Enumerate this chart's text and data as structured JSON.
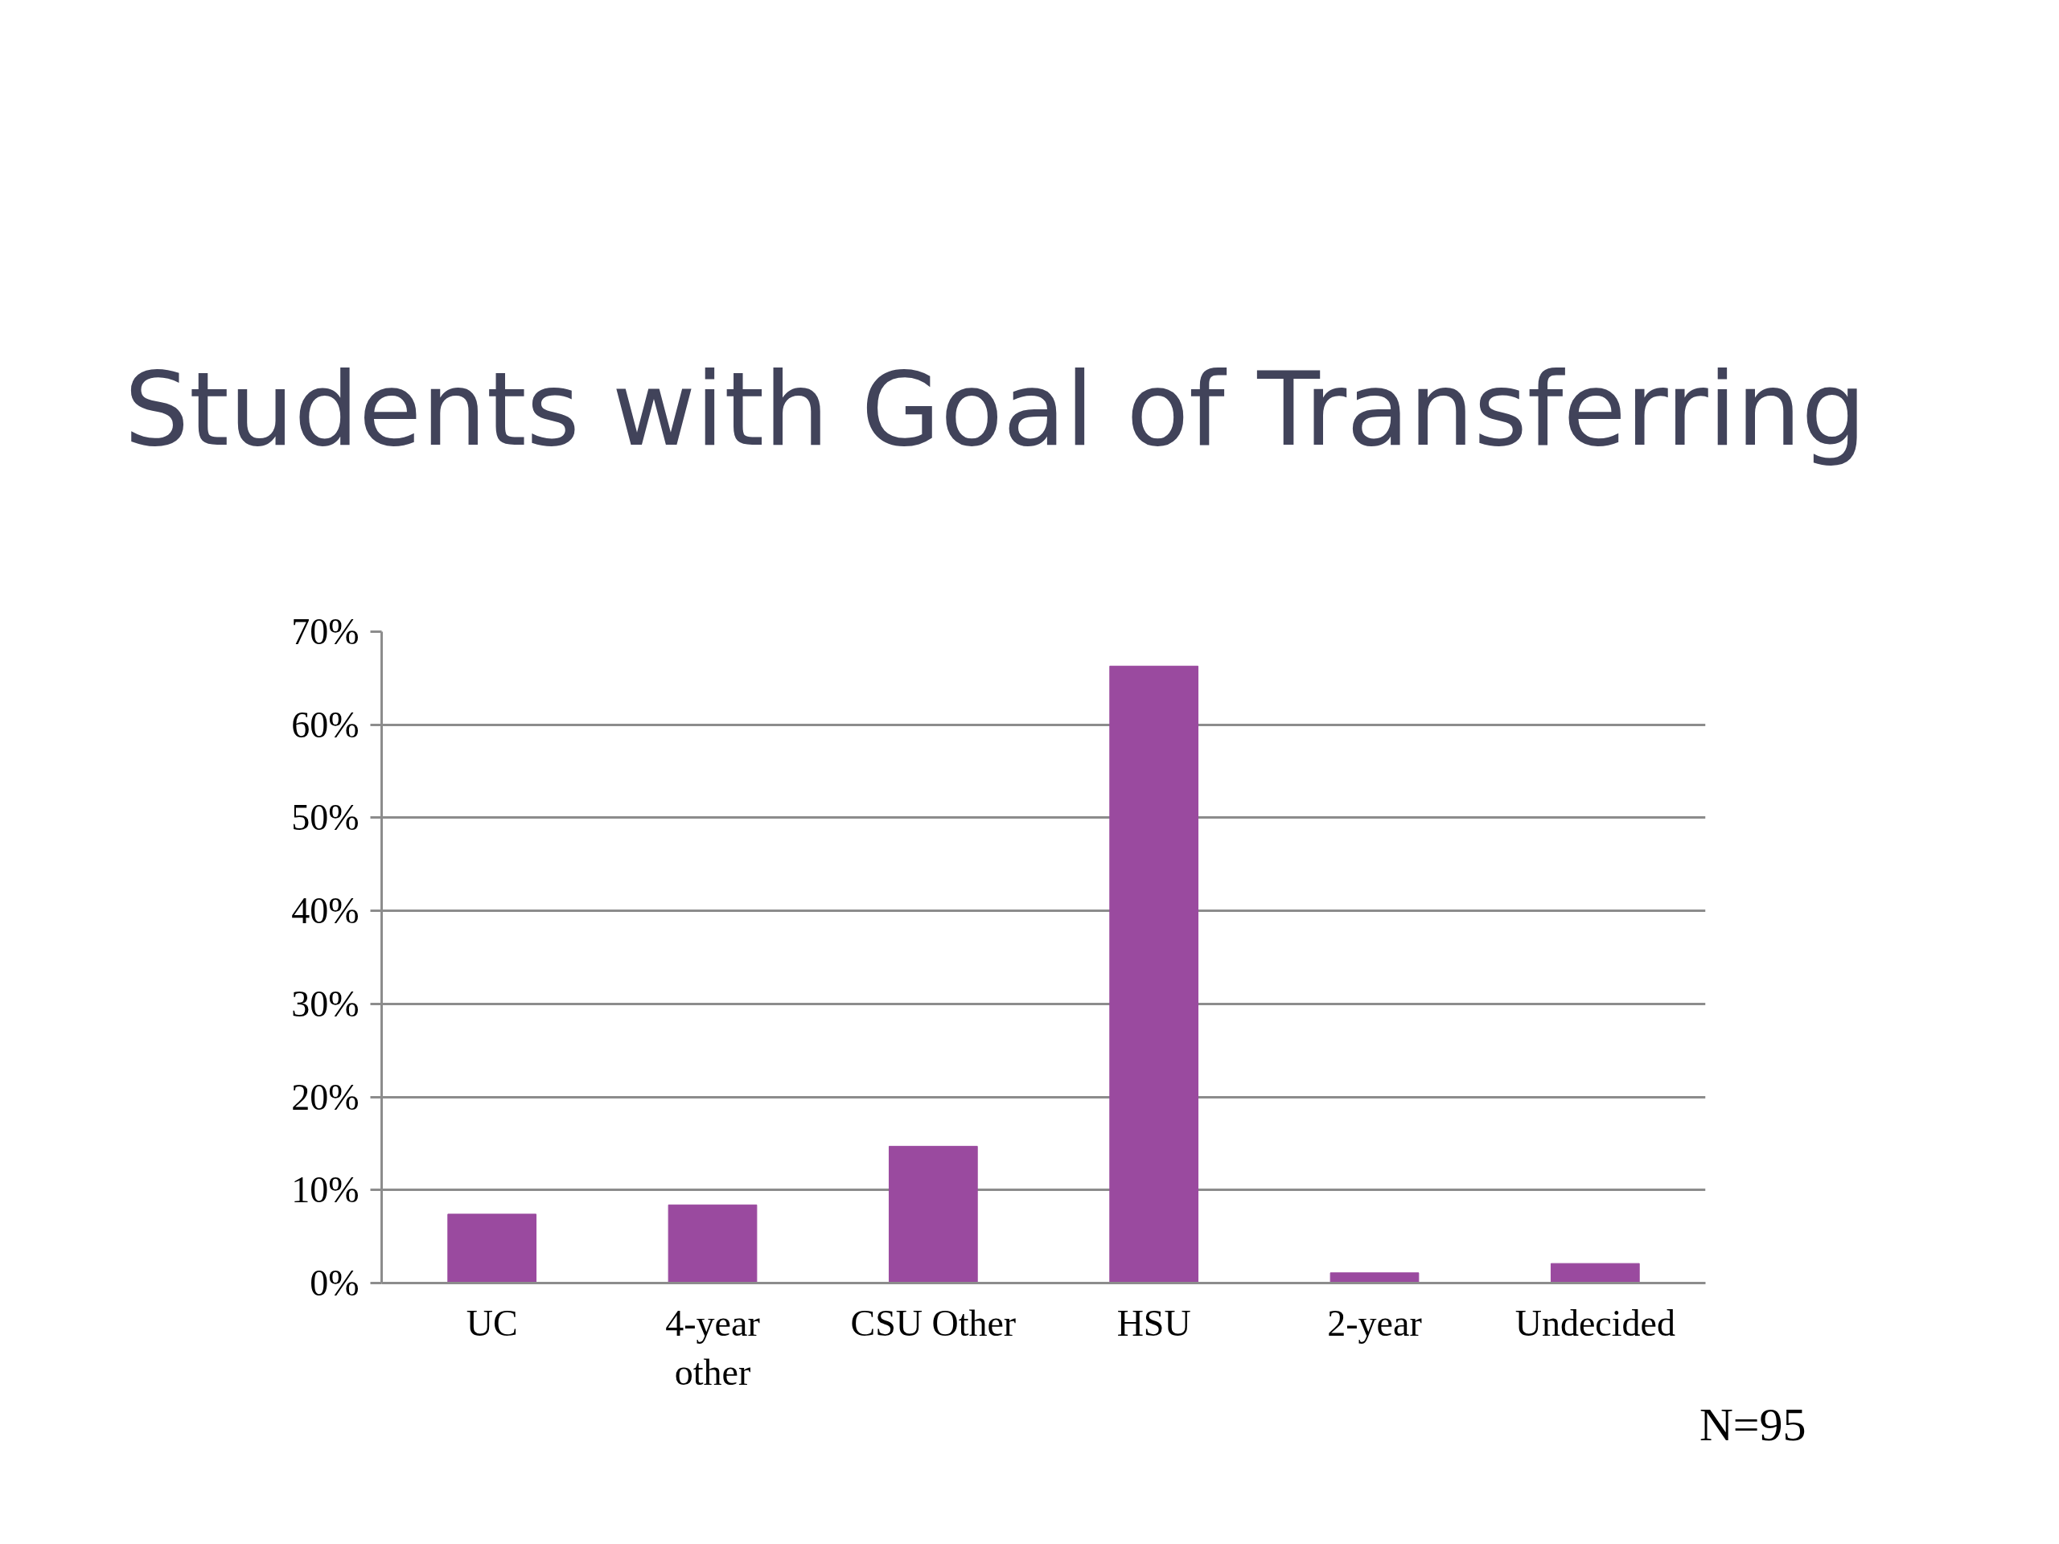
{
  "chart_data": {
    "type": "bar",
    "title": "Students with Goal of Transferring",
    "categories": [
      "UC",
      "4-year other",
      "CSU Other",
      "HSU",
      "2-year",
      "Undecided"
    ],
    "values": [
      7.4,
      8.4,
      14.7,
      66.3,
      1.1,
      2.1
    ],
    "color": "#9a4a9f",
    "ylim": [
      0,
      70
    ],
    "yticks": [
      {
        "value": 0,
        "label": "0%"
      },
      {
        "value": 10,
        "label": "10%"
      },
      {
        "value": 20,
        "label": "20%"
      },
      {
        "value": 30,
        "label": "30%"
      },
      {
        "value": 40,
        "label": "40%"
      },
      {
        "value": 50,
        "label": "50%"
      },
      {
        "value": 60,
        "label": "60%"
      },
      {
        "value": 70,
        "label": "70%"
      }
    ],
    "grid": "y",
    "annotations": [
      "N=95"
    ]
  }
}
